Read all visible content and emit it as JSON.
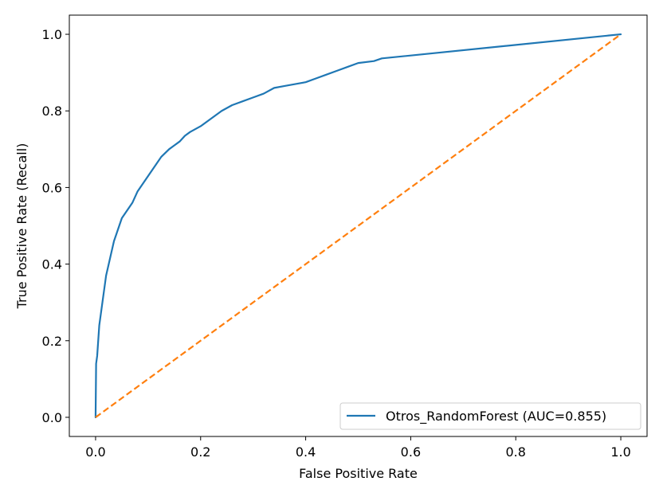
{
  "chart_data": {
    "type": "line",
    "title": "",
    "xlabel": "False Positive Rate",
    "ylabel": "True Positive Rate (Recall)",
    "xlim": [
      -0.05,
      1.05
    ],
    "ylim": [
      -0.05,
      1.05
    ],
    "xticks": [
      0.0,
      0.2,
      0.4,
      0.6,
      0.8,
      1.0
    ],
    "xtick_labels": [
      "0.0",
      "0.2",
      "0.4",
      "0.6",
      "0.8",
      "1.0"
    ],
    "yticks": [
      0.0,
      0.2,
      0.4,
      0.6,
      0.8,
      1.0
    ],
    "ytick_labels": [
      "0.0",
      "0.2",
      "0.4",
      "0.6",
      "0.8",
      "1.0"
    ],
    "grid": false,
    "legend_position": "lower right",
    "series": [
      {
        "name": "Otros_RandomForest (AUC=0.855)",
        "color": "#1f77b4",
        "style": "solid",
        "x": [
          0.0,
          0.001,
          0.003,
          0.005,
          0.007,
          0.01,
          0.013,
          0.016,
          0.02,
          0.025,
          0.03,
          0.035,
          0.04,
          0.045,
          0.05,
          0.06,
          0.07,
          0.08,
          0.09,
          0.1,
          0.11,
          0.12,
          0.125,
          0.14,
          0.15,
          0.16,
          0.17,
          0.18,
          0.2,
          0.22,
          0.24,
          0.26,
          0.28,
          0.3,
          0.32,
          0.34,
          0.36,
          0.38,
          0.4,
          0.42,
          0.44,
          0.46,
          0.48,
          0.5,
          0.53,
          0.545,
          1.0
        ],
        "y": [
          0.0,
          0.14,
          0.16,
          0.2,
          0.24,
          0.27,
          0.3,
          0.33,
          0.37,
          0.4,
          0.43,
          0.46,
          0.48,
          0.5,
          0.52,
          0.54,
          0.56,
          0.59,
          0.61,
          0.63,
          0.65,
          0.67,
          0.68,
          0.7,
          0.71,
          0.72,
          0.735,
          0.745,
          0.76,
          0.78,
          0.8,
          0.815,
          0.825,
          0.835,
          0.845,
          0.86,
          0.865,
          0.87,
          0.875,
          0.885,
          0.895,
          0.905,
          0.915,
          0.925,
          0.93,
          0.937,
          1.0
        ]
      },
      {
        "name": "",
        "color": "#ff7f0e",
        "style": "dashed",
        "x": [
          0.0,
          1.0
        ],
        "y": [
          0.0,
          1.0
        ]
      }
    ],
    "legend": [
      {
        "label": "Otros_RandomForest (AUC=0.855)",
        "color": "#1f77b4"
      }
    ]
  }
}
